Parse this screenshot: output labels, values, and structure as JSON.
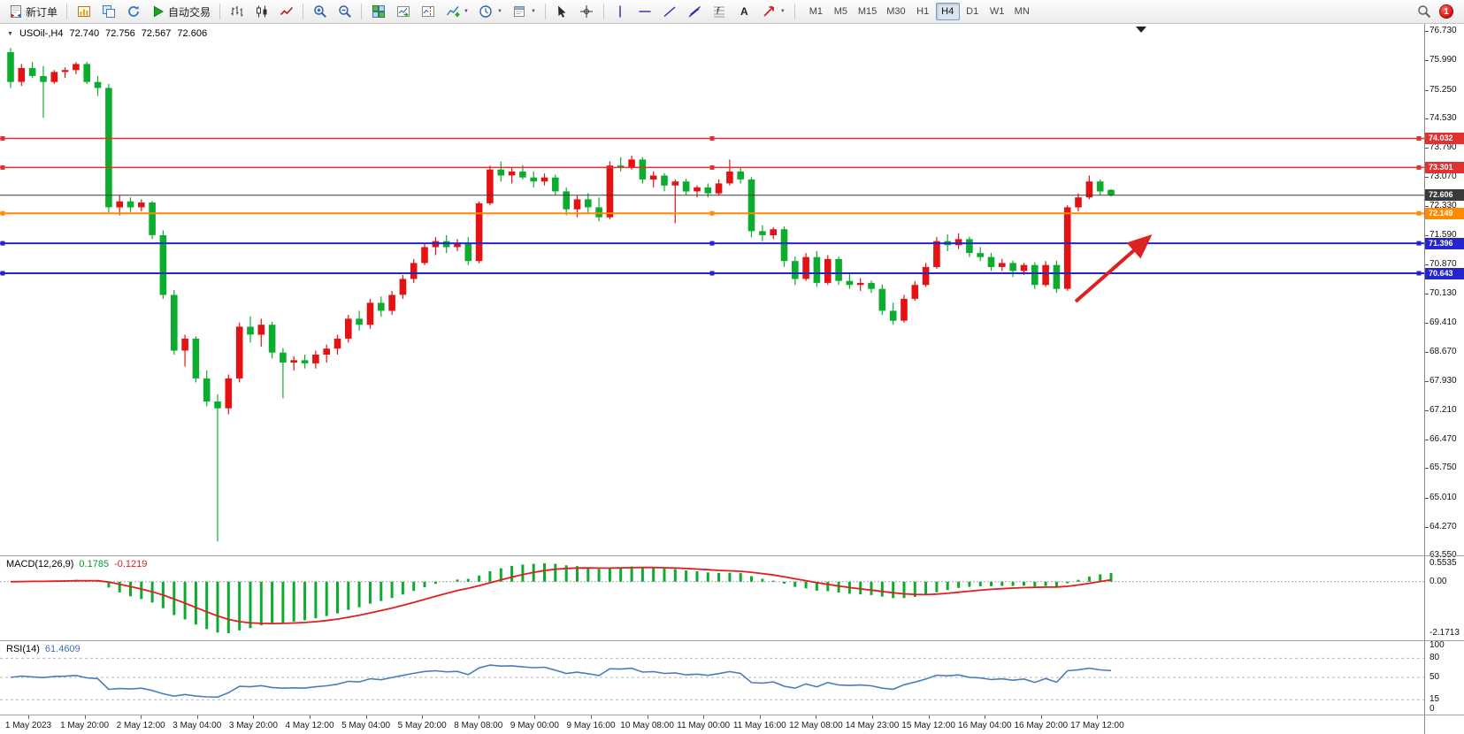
{
  "toolbar": {
    "items": [
      {
        "name": "new-order-button",
        "icon": "new-order-icon",
        "label": "新订单"
      },
      {
        "sep": true
      },
      {
        "name": "new-chart-button",
        "icon": "new-chart-icon"
      },
      {
        "name": "profiles-button",
        "icon": "profiles-icon"
      },
      {
        "name": "refresh-button",
        "icon": "refresh-icon"
      },
      {
        "name": "autotrading-button",
        "icon": "autotrading-icon",
        "label": "自动交易"
      },
      {
        "sep": true
      },
      {
        "name": "bar-chart-button",
        "icon": "bar-chart-icon"
      },
      {
        "name": "candlestick-chart-button",
        "icon": "candlestick-icon"
      },
      {
        "name": "line-chart-button",
        "icon": "line-chart-icon"
      },
      {
        "sep": true
      },
      {
        "name": "zoom-in-button",
        "icon": "zoom-in-icon"
      },
      {
        "name": "zoom-out-button",
        "icon": "zoom-out-icon"
      },
      {
        "sep": true
      },
      {
        "name": "tile-windows-button",
        "icon": "tile-windows-icon"
      },
      {
        "name": "autoscroll-button",
        "icon": "autoscroll-icon"
      },
      {
        "name": "chart-shift-button",
        "icon": "chart-shift-icon"
      },
      {
        "name": "indicators-button",
        "icon": "indicators-icon",
        "dropdown": true
      },
      {
        "name": "periods-button",
        "icon": "periods-icon",
        "dropdown": true
      },
      {
        "name": "templates-button",
        "icon": "templates-icon",
        "dropdown": true
      },
      {
        "sep": true
      },
      {
        "name": "cursor-button",
        "icon": "cursor-icon"
      },
      {
        "name": "crosshair-button",
        "icon": "crosshair-icon"
      },
      {
        "sep": true
      },
      {
        "name": "vertical-line-button",
        "icon": "vertical-line-icon"
      },
      {
        "name": "horizontal-line-button",
        "icon": "horizontal-line-icon"
      },
      {
        "name": "trendline-button",
        "icon": "trendline-icon"
      },
      {
        "name": "channel-button",
        "icon": "channel-icon"
      },
      {
        "name": "fibonacci-button",
        "icon": "fibonacci-icon"
      },
      {
        "name": "text-button",
        "icon": "text-icon"
      },
      {
        "name": "arrows-button",
        "icon": "arrows-icon",
        "dropdown": true
      },
      {
        "sep": true
      }
    ],
    "glyph_icons": {
      "text-icon": "A"
    },
    "dropdown_glyph": "▼",
    "timeframes": [
      "M1",
      "M5",
      "M15",
      "M30",
      "H1",
      "H4",
      "D1",
      "W1",
      "MN"
    ],
    "active_timeframe": "H4",
    "notification_count": "1"
  },
  "chart": {
    "title_triangle": "▼",
    "symbol_title": "USOil-,H4",
    "ohlc": {
      "open": "72.740",
      "high": "72.756",
      "low": "72.567",
      "close": "72.606"
    },
    "macd": {
      "label": "MACD(12,26,9)",
      "main_value": "0.1785",
      "signal_value": "-0.1219",
      "axis_labels": [
        "0.5535",
        "0.00",
        "-2.1713"
      ]
    },
    "rsi": {
      "label": "RSI(14)",
      "value": "61.4609",
      "axis_labels": [
        "100",
        "80",
        "50",
        "15",
        "0"
      ],
      "levels": [
        80,
        50,
        15
      ]
    }
  },
  "chart_data": {
    "type": "candlestick",
    "symbol": "USOil",
    "timeframe": "H4",
    "up_color": "#e41212",
    "down_color": "#0cad2f",
    "price_ticks": [
      "76.730",
      "75.990",
      "75.250",
      "74.530",
      "73.790",
      "73.070",
      "72.330",
      "71.590",
      "70.870",
      "70.130",
      "69.410",
      "68.670",
      "67.930",
      "67.210",
      "66.470",
      "65.750",
      "65.010",
      "64.270",
      "63.550"
    ],
    "time_labels": [
      "1 May 2023",
      "1 May 20:00",
      "2 May 12:00",
      "3 May 04:00",
      "3 May 20:00",
      "4 May 12:00",
      "5 May 04:00",
      "5 May 20:00",
      "8 May 08:00",
      "9 May 00:00",
      "9 May 16:00",
      "10 May 08:00",
      "11 May 00:00",
      "11 May 16:00",
      "12 May 08:00",
      "14 May 23:00",
      "15 May 12:00",
      "16 May 04:00",
      "16 May 20:00",
      "17 May 12:00"
    ],
    "hlines": [
      {
        "price": 74.032,
        "label": "74.032",
        "color": "#e23131",
        "width": 1.5,
        "handles": true
      },
      {
        "price": 73.301,
        "label": "73.301",
        "color": "#e23131",
        "width": 1.5,
        "handles": true
      },
      {
        "price": 72.606,
        "label": "72.606",
        "color": "#3a3a3a",
        "width": 1,
        "handles": false
      },
      {
        "price": 72.149,
        "label": "72.149",
        "color": "#ff8a00",
        "width": 2,
        "handles": true
      },
      {
        "price": 71.396,
        "label": "71.396",
        "color": "#2525cd",
        "width": 2,
        "handles": true
      },
      {
        "price": 70.643,
        "label": "70.643",
        "color": "#2525cd",
        "width": 2,
        "handles": true
      }
    ],
    "indicators": [
      {
        "name": "MACD",
        "params": [
          12,
          26,
          9
        ],
        "histogram_color": "#0cad2f",
        "signal_color": "#e02020"
      },
      {
        "name": "RSI",
        "params": [
          14
        ],
        "line_color": "#4a7ebb"
      }
    ],
    "annotations": [
      {
        "type": "arrow",
        "color": "#dd2222",
        "note": "upward trend arrow over recent rally"
      }
    ],
    "candles": [
      [
        76.2,
        76.3,
        75.3,
        75.45
      ],
      [
        75.45,
        75.9,
        75.35,
        75.8
      ],
      [
        75.8,
        75.95,
        75.55,
        75.6
      ],
      [
        75.6,
        75.85,
        74.55,
        75.45
      ],
      [
        75.45,
        75.75,
        75.4,
        75.7
      ],
      [
        75.7,
        75.82,
        75.55,
        75.75
      ],
      [
        75.75,
        75.95,
        75.65,
        75.9
      ],
      [
        75.9,
        75.96,
        75.4,
        75.45
      ],
      [
        75.45,
        75.6,
        75.1,
        75.3
      ],
      [
        75.3,
        75.4,
        72.15,
        72.3
      ],
      [
        72.3,
        72.6,
        72.1,
        72.45
      ],
      [
        72.45,
        72.55,
        72.18,
        72.3
      ],
      [
        72.3,
        72.5,
        72.2,
        72.42
      ],
      [
        72.42,
        72.46,
        71.5,
        71.6
      ],
      [
        71.6,
        71.72,
        70.0,
        70.1
      ],
      [
        70.1,
        70.22,
        68.6,
        68.7
      ],
      [
        68.7,
        69.1,
        68.3,
        69.0
      ],
      [
        69.0,
        69.06,
        67.9,
        68.0
      ],
      [
        68.0,
        68.2,
        67.3,
        67.42
      ],
      [
        67.42,
        67.6,
        63.9,
        67.25
      ],
      [
        67.25,
        68.1,
        67.1,
        68.0
      ],
      [
        68.0,
        69.4,
        67.9,
        69.3
      ],
      [
        69.3,
        69.56,
        68.9,
        69.1
      ],
      [
        69.1,
        69.5,
        68.8,
        69.35
      ],
      [
        69.35,
        69.42,
        68.5,
        68.65
      ],
      [
        68.65,
        68.76,
        67.5,
        68.4
      ],
      [
        68.4,
        68.56,
        68.2,
        68.46
      ],
      [
        68.46,
        68.6,
        68.25,
        68.38
      ],
      [
        68.38,
        68.7,
        68.25,
        68.6
      ],
      [
        68.6,
        68.85,
        68.4,
        68.75
      ],
      [
        68.75,
        69.1,
        68.6,
        69.0
      ],
      [
        69.0,
        69.6,
        68.9,
        69.5
      ],
      [
        69.5,
        69.7,
        69.2,
        69.35
      ],
      [
        69.35,
        70.0,
        69.25,
        69.9
      ],
      [
        69.9,
        70.06,
        69.55,
        69.7
      ],
      [
        69.7,
        70.2,
        69.6,
        70.1
      ],
      [
        70.1,
        70.6,
        70.0,
        70.5
      ],
      [
        70.5,
        71.0,
        70.4,
        70.9
      ],
      [
        70.9,
        71.4,
        70.85,
        71.3
      ],
      [
        71.3,
        71.55,
        71.1,
        71.45
      ],
      [
        71.45,
        71.6,
        71.15,
        71.3
      ],
      [
        71.3,
        71.5,
        71.2,
        71.4
      ],
      [
        71.4,
        71.55,
        70.85,
        70.95
      ],
      [
        70.95,
        72.45,
        70.9,
        72.4
      ],
      [
        72.4,
        73.35,
        72.35,
        73.25
      ],
      [
        73.25,
        73.45,
        72.95,
        73.1
      ],
      [
        73.1,
        73.3,
        72.9,
        73.2
      ],
      [
        73.2,
        73.36,
        73.0,
        73.05
      ],
      [
        73.05,
        73.2,
        72.8,
        72.95
      ],
      [
        72.95,
        73.15,
        72.85,
        73.05
      ],
      [
        73.05,
        73.12,
        72.6,
        72.7
      ],
      [
        72.7,
        72.8,
        72.1,
        72.25
      ],
      [
        72.25,
        72.6,
        72.05,
        72.5
      ],
      [
        72.5,
        72.66,
        72.15,
        72.3
      ],
      [
        72.3,
        72.55,
        71.95,
        72.05
      ],
      [
        72.05,
        73.45,
        72.0,
        73.35
      ],
      [
        73.35,
        73.56,
        73.2,
        73.3
      ],
      [
        73.3,
        73.6,
        73.25,
        73.5
      ],
      [
        73.5,
        73.56,
        72.9,
        73.0
      ],
      [
        73.0,
        73.2,
        72.8,
        73.1
      ],
      [
        73.1,
        73.16,
        72.7,
        72.85
      ],
      [
        72.85,
        73.0,
        71.9,
        72.95
      ],
      [
        72.95,
        73.02,
        72.6,
        72.7
      ],
      [
        72.7,
        72.85,
        72.55,
        72.8
      ],
      [
        72.8,
        72.9,
        72.55,
        72.65
      ],
      [
        72.65,
        73.0,
        72.6,
        72.9
      ],
      [
        72.9,
        73.5,
        72.85,
        73.2
      ],
      [
        73.2,
        73.3,
        72.9,
        73.0
      ],
      [
        73.0,
        73.06,
        71.55,
        71.7
      ],
      [
        71.7,
        71.85,
        71.45,
        71.6
      ],
      [
        71.6,
        71.8,
        71.5,
        71.75
      ],
      [
        71.75,
        71.82,
        70.8,
        70.95
      ],
      [
        70.95,
        71.06,
        70.35,
        70.5
      ],
      [
        70.5,
        71.15,
        70.45,
        71.05
      ],
      [
        71.05,
        71.2,
        70.3,
        70.4
      ],
      [
        70.4,
        71.1,
        70.35,
        71.0
      ],
      [
        71.0,
        71.06,
        70.35,
        70.45
      ],
      [
        70.45,
        70.62,
        70.25,
        70.35
      ],
      [
        70.35,
        70.52,
        70.2,
        70.4
      ],
      [
        70.4,
        70.46,
        70.15,
        70.25
      ],
      [
        70.25,
        70.36,
        69.6,
        69.7
      ],
      [
        69.7,
        69.9,
        69.35,
        69.45
      ],
      [
        69.45,
        70.1,
        69.4,
        70.0
      ],
      [
        70.0,
        70.45,
        69.95,
        70.35
      ],
      [
        70.35,
        70.9,
        70.3,
        70.8
      ],
      [
        70.8,
        71.55,
        70.75,
        71.45
      ],
      [
        71.45,
        71.62,
        71.2,
        71.35
      ],
      [
        71.35,
        71.65,
        71.25,
        71.5
      ],
      [
        71.5,
        71.56,
        71.05,
        71.15
      ],
      [
        71.15,
        71.3,
        70.95,
        71.05
      ],
      [
        71.05,
        71.16,
        70.7,
        70.8
      ],
      [
        70.8,
        71.0,
        70.7,
        70.9
      ],
      [
        70.9,
        70.96,
        70.55,
        70.7
      ],
      [
        70.7,
        70.9,
        70.6,
        70.85
      ],
      [
        70.85,
        70.92,
        70.25,
        70.35
      ],
      [
        70.35,
        70.95,
        70.3,
        70.85
      ],
      [
        70.85,
        70.96,
        70.15,
        70.25
      ],
      [
        70.25,
        72.35,
        70.2,
        72.3
      ],
      [
        72.3,
        72.65,
        72.2,
        72.55
      ],
      [
        72.55,
        73.1,
        72.5,
        72.95
      ],
      [
        72.95,
        73.0,
        72.6,
        72.7
      ],
      [
        72.74,
        72.756,
        72.567,
        72.606
      ]
    ]
  }
}
